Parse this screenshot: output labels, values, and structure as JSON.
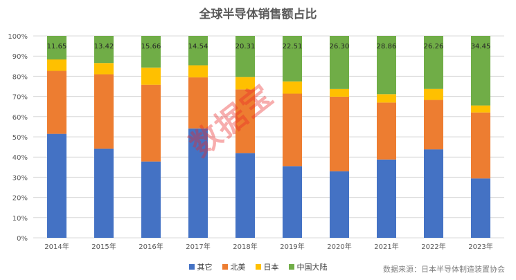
{
  "chart_data": {
    "type": "bar",
    "stacked": true,
    "title": "全球半导体销售额占比",
    "categories": [
      "2014年",
      "2015年",
      "2016年",
      "2017年",
      "2018年",
      "2019年",
      "2020年",
      "2021年",
      "2022年",
      "2023年"
    ],
    "ylim": [
      0,
      100
    ],
    "y_ticks": [
      "0%",
      "10%",
      "20%",
      "30%",
      "40%",
      "50%",
      "60%",
      "70%",
      "80%",
      "90%",
      "100%"
    ],
    "legend_position": "bottom",
    "series": [
      {
        "name": "其它",
        "color": "#4472C4",
        "values": [
          51.5,
          44.2,
          37.8,
          54.2,
          42.0,
          35.5,
          33.0,
          38.8,
          43.8,
          29.4
        ]
      },
      {
        "name": "北美",
        "color": "#ED7D31",
        "values": [
          31.2,
          36.8,
          38.0,
          25.3,
          31.5,
          35.9,
          36.9,
          28.2,
          24.5,
          32.7
        ]
      },
      {
        "name": "日本",
        "color": "#FFC000",
        "values": [
          5.65,
          5.58,
          8.54,
          5.96,
          6.19,
          6.09,
          3.8,
          4.14,
          5.44,
          3.45
        ]
      },
      {
        "name": "中国大陆",
        "color": "#70AD47",
        "values": [
          11.65,
          13.42,
          15.66,
          14.54,
          20.31,
          22.51,
          26.3,
          28.86,
          26.26,
          34.45
        ]
      }
    ],
    "data_labels": {
      "series": "中国大陆",
      "values": [
        "11.65",
        "13.42",
        "15.66",
        "14.54",
        "20.31",
        "22.51",
        "26.30",
        "28.86",
        "26.26",
        "34.45"
      ]
    },
    "grid": true
  },
  "watermark": "数据宝",
  "source": "数据来源：日本半导体制造装置协会"
}
